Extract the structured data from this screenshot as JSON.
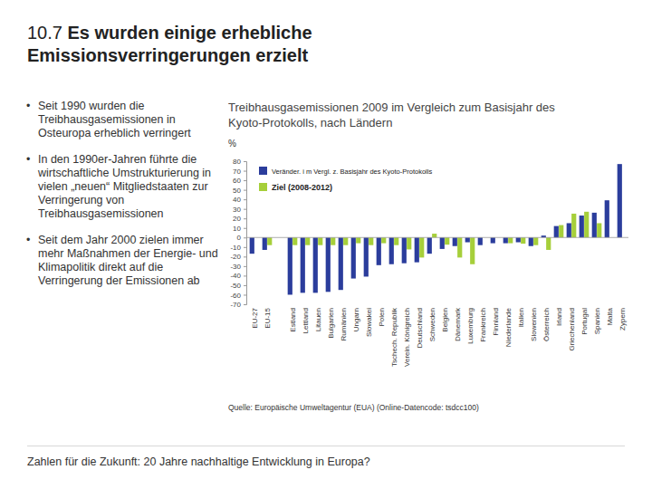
{
  "page": {
    "number": "10.7",
    "title": "Es wurden einige erhebliche Emissionsverringerungen erzielt",
    "bullets": [
      "Seit 1990 wurden die Treibhausgasemissionen in Osteuropa erheblich verringert",
      "In den 1990er-Jahren führte die wirtschaftliche Umstrukturierung in vielen „neuen“ Mitgliedstaaten zur Verringerung von Treibhausgasemissionen",
      "Seit dem Jahr 2000 zielen immer mehr Maßnahmen der Energie- und Klimapolitik direkt auf die Verringerung der Emissionen ab"
    ],
    "source": "Quelle: Europäische Umweltagentur (EUA) (Online-Datencode: tsdcc100)",
    "footer": "Zahlen für die Zukunft: 20 Jahre nachhaltige Entwicklung in Europa?"
  },
  "chart_data": {
    "type": "bar",
    "title": "Treibhausgasemissionen 2009 im Vergleich zum Basisjahr des Kyoto-Protokolls, nach Ländern",
    "y_label": "%",
    "categories": [
      "EU-27",
      "EU-15",
      null,
      "Estland",
      "Lettland",
      "Litauen",
      "Bulgarien",
      "Rumänien",
      "Ungarn",
      "Slowakei",
      "Polen",
      "Tschech. Republik",
      "Verein. Königreich",
      "Deutschland",
      "Schweden",
      "Belgien",
      "Dänemark",
      "Luxemburg",
      "Frankreich",
      "Finnland",
      "Niederlande",
      "Italien",
      "Slowenien",
      "Österreich",
      "Irland",
      "Griechenland",
      "Portugal",
      "Spanien",
      "Malta",
      "Zypern"
    ],
    "series": [
      {
        "name": "Veränder. i m Vergl. z. Basisjahr des Kyoto-Protokolls",
        "color": "#2b3d9c",
        "values": [
          -17,
          -13,
          null,
          -60,
          -58,
          -58,
          -57,
          -55,
          -43,
          -41,
          -29,
          -28,
          -27,
          -26,
          -17,
          -12,
          -9,
          -5,
          -8,
          -6,
          -6,
          -5,
          -9,
          2,
          12,
          15,
          23,
          26,
          39,
          77
        ]
      },
      {
        "name": "Ziel (2008-2012)",
        "color": "#a6cf3a",
        "values": [
          null,
          -8,
          null,
          -8,
          -8,
          -8,
          -8,
          -8,
          -6,
          -8,
          -6,
          -8,
          -12.5,
          -21,
          4,
          -7.5,
          -21,
          -28,
          0,
          0,
          -6,
          -6.5,
          -8,
          -13,
          13,
          25,
          27,
          15,
          null,
          null
        ]
      }
    ],
    "ylim": [
      -70,
      80
    ],
    "yticks": [
      -70,
      -60,
      -50,
      -40,
      -30,
      -20,
      -10,
      0,
      10,
      20,
      30,
      40,
      50,
      60,
      70,
      80
    ],
    "grid": false,
    "legend": "top-left",
    "data_labels": false
  }
}
